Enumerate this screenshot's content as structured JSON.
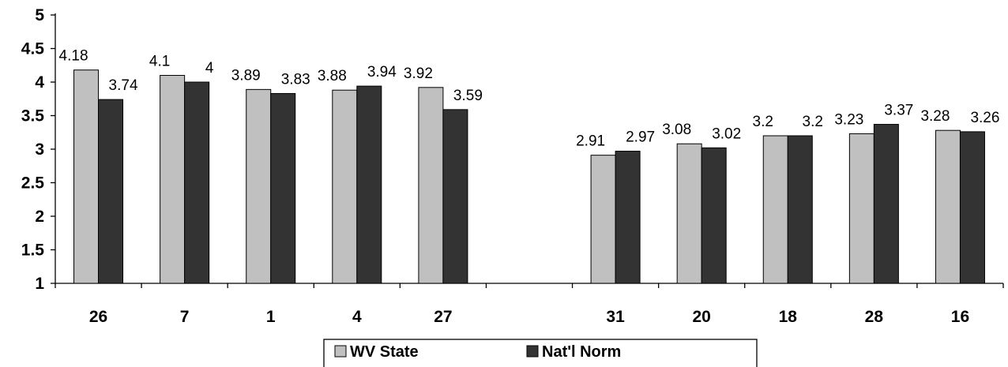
{
  "chart_data": {
    "type": "bar",
    "categories": [
      "26",
      "7",
      "1",
      "4",
      "27",
      "",
      "31",
      "20",
      "18",
      "28",
      "16"
    ],
    "series": [
      {
        "name": "WV State",
        "values": [
          4.18,
          4.1,
          3.89,
          3.88,
          3.92,
          null,
          2.91,
          3.08,
          3.2,
          3.23,
          3.28
        ],
        "labels": [
          "4.18",
          "4.1",
          "3.89",
          "3.88",
          "3.92",
          null,
          "2.91",
          "3.08",
          "3.2",
          "3.23",
          "3.28"
        ],
        "color": "#c0c0c0"
      },
      {
        "name": "Nat'l Norm",
        "values": [
          3.74,
          4.0,
          3.83,
          3.94,
          3.59,
          null,
          2.97,
          3.02,
          3.2,
          3.37,
          3.26
        ],
        "labels": [
          "3.74",
          "4",
          "3.83",
          "3.94",
          "3.59",
          null,
          "2.97",
          "3.02",
          "3.2",
          "3.37",
          "3.26"
        ],
        "color": "#333333"
      }
    ],
    "y_ticks": [
      "1",
      "1.5",
      "2",
      "2.5",
      "3",
      "3.5",
      "4",
      "4.5",
      "5"
    ],
    "ylim": [
      1,
      5
    ],
    "ytick_step": 0.5,
    "grid": false,
    "legend_position": "bottom-center",
    "title": "",
    "xlabel": "",
    "ylabel": ""
  }
}
